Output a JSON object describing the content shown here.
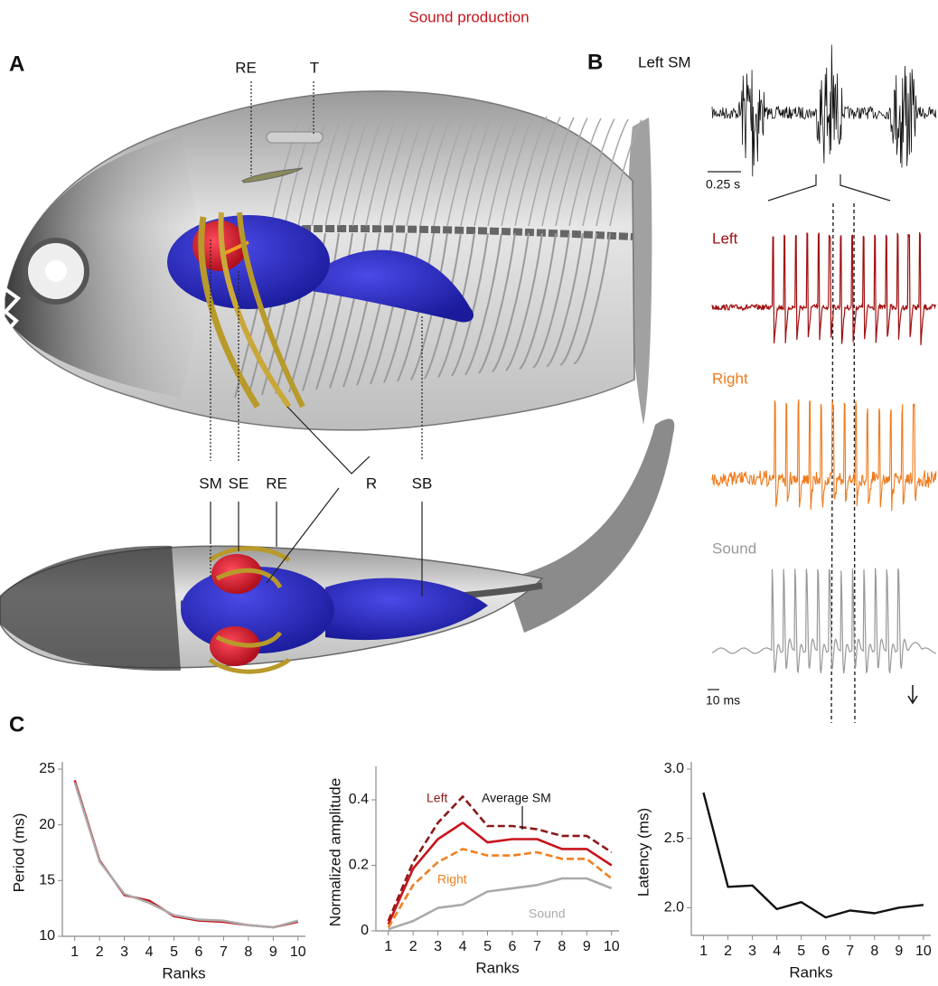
{
  "figure": {
    "title": "Sound production",
    "panel_labels": [
      "A",
      "B",
      "C"
    ],
    "panel_a": {
      "top_labels": [
        "RE",
        "T"
      ],
      "bottom_labels": [
        "SM",
        "SE",
        "RE",
        "R",
        "SB"
      ]
    },
    "panel_b": {
      "traces": [
        "Left SM",
        "Left",
        "Right",
        "Sound"
      ],
      "scale_bars": [
        "0.25 s",
        "10 ms"
      ]
    }
  },
  "chart_data": [
    {
      "type": "line",
      "y_label": "Period (ms)",
      "x_label": "Ranks",
      "x": [
        1,
        2,
        3,
        4,
        5,
        6,
        7,
        8,
        9,
        10
      ],
      "xlim": [
        0.5,
        10.3
      ],
      "xticks": [
        1,
        2,
        3,
        4,
        5,
        6,
        7,
        8,
        9,
        10
      ],
      "ylim": [
        10,
        25
      ],
      "yticks": [
        10,
        15,
        20,
        25
      ],
      "series": [
        {
          "color": "#c8141c",
          "dashed": false,
          "values": [
            24,
            16.8,
            13.7,
            13.2,
            11.8,
            11.4,
            11.3,
            11.0,
            10.8,
            11.3
          ]
        },
        {
          "color": "#aaaaaa",
          "dashed": false,
          "values": [
            23.8,
            16.7,
            13.8,
            13.0,
            11.9,
            11.5,
            11.4,
            11.0,
            10.8,
            11.4
          ]
        }
      ]
    },
    {
      "type": "line",
      "y_label": "Normalized amplitude",
      "x_label": "Ranks",
      "x": [
        1,
        2,
        3,
        4,
        5,
        6,
        7,
        8,
        9,
        10
      ],
      "xlim": [
        0.5,
        10.3
      ],
      "xticks": [
        1,
        2,
        3,
        4,
        5,
        6,
        7,
        8,
        9,
        10
      ],
      "ylim": [
        0,
        0.48
      ],
      "yticks": [
        0,
        0.2,
        0.4
      ],
      "series": [
        {
          "name": "Left",
          "color": "#8b1a1a",
          "dashed": true,
          "values": [
            0.03,
            0.21,
            0.33,
            0.41,
            0.32,
            0.32,
            0.31,
            0.29,
            0.29,
            0.24
          ]
        },
        {
          "name": "Average SM",
          "color": "#c8141c",
          "dashed": false,
          "values": [
            0.02,
            0.19,
            0.28,
            0.33,
            0.27,
            0.28,
            0.28,
            0.25,
            0.25,
            0.2
          ]
        },
        {
          "name": "Right",
          "color": "#f08020",
          "dashed": true,
          "values": [
            0.01,
            0.14,
            0.21,
            0.25,
            0.23,
            0.23,
            0.24,
            0.22,
            0.22,
            0.16
          ]
        },
        {
          "name": "Sound",
          "color": "#aaaaaa",
          "dashed": false,
          "values": [
            0.005,
            0.03,
            0.07,
            0.08,
            0.12,
            0.13,
            0.14,
            0.16,
            0.16,
            0.13
          ]
        }
      ]
    },
    {
      "type": "line",
      "y_label": "Latency (ms)",
      "x_label": "Ranks",
      "x": [
        1,
        2,
        3,
        4,
        5,
        6,
        7,
        8,
        9,
        10
      ],
      "xlim": [
        0.5,
        10.3
      ],
      "xticks": [
        1,
        2,
        3,
        4,
        5,
        6,
        7,
        8,
        9,
        10
      ],
      "ylim": [
        1.8,
        3.0
      ],
      "yticks": [
        {
          "value": 2,
          "label": "2.0"
        },
        2.5,
        {
          "value": 3,
          "label": "3.0"
        }
      ],
      "series": [
        {
          "color": "#111111",
          "dashed": false,
          "values": [
            2.83,
            2.15,
            2.16,
            1.99,
            2.04,
            1.93,
            1.98,
            1.96,
            2.0,
            2.02
          ]
        }
      ]
    }
  ]
}
